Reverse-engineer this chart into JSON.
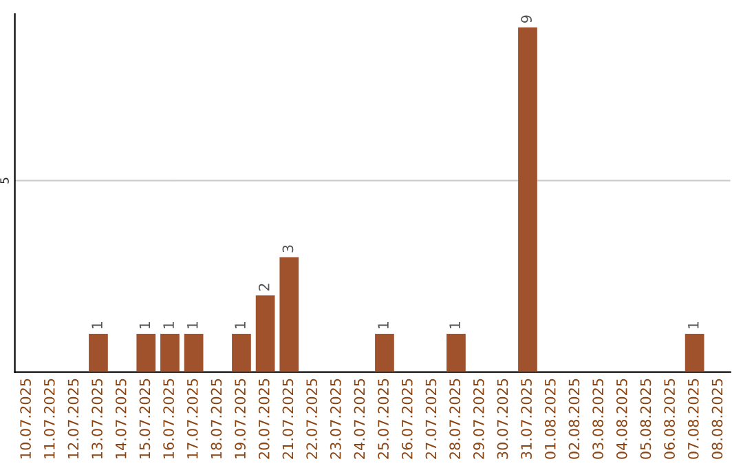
{
  "chart_data": {
    "type": "bar",
    "categories": [
      "10.07.2025",
      "11.07.2025",
      "12.07.2025",
      "13.07.2025",
      "14.07.2025",
      "15.07.2025",
      "16.07.2025",
      "17.07.2025",
      "18.07.2025",
      "19.07.2025",
      "20.07.2025",
      "21.07.2025",
      "22.07.2025",
      "23.07.2025",
      "24.07.2025",
      "25.07.2025",
      "26.07.2025",
      "27.07.2025",
      "28.07.2025",
      "29.07.2025",
      "30.07.2025",
      "31.07.2025",
      "01.08.2025",
      "02.08.2025",
      "03.08.2025",
      "04.08.2025",
      "05.08.2025",
      "06.08.2025",
      "07.08.2025",
      "08.08.2025"
    ],
    "values": [
      0,
      0,
      0,
      1,
      0,
      1,
      1,
      1,
      0,
      1,
      2,
      3,
      0,
      0,
      0,
      1,
      0,
      0,
      1,
      0,
      0,
      9,
      0,
      0,
      0,
      0,
      0,
      0,
      1,
      0
    ],
    "value_labels": [
      null,
      null,
      null,
      "1",
      null,
      "1",
      "1",
      "1",
      null,
      "1",
      "2",
      "3",
      null,
      null,
      null,
      "1",
      null,
      null,
      "1",
      null,
      null,
      "9",
      null,
      null,
      null,
      null,
      null,
      null,
      "1",
      null
    ],
    "color": "#a0522d",
    "ylim": [
      0,
      9.35
    ],
    "yticks": [
      5
    ],
    "grid": "y"
  }
}
